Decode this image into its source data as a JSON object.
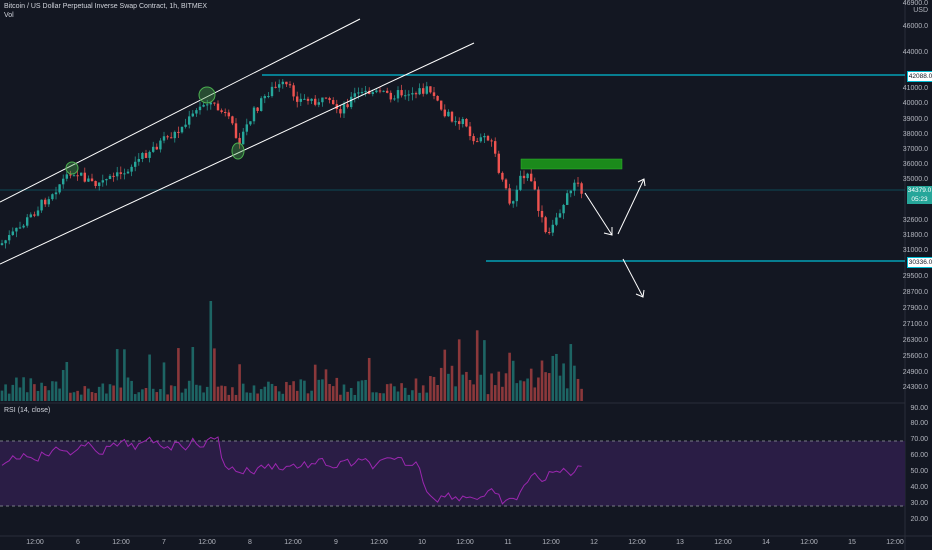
{
  "header": {
    "title": "Bitcoin / US Dollar Perpetual Inverse Swap Contract, 1h, BITMEX",
    "vol_label": "Vol",
    "currency": "USD",
    "top_price": "46900.0"
  },
  "rsi": {
    "label": "RSI (14, close)",
    "ticks": [
      "90.00",
      "80.00",
      "70.00",
      "60.00",
      "50.00",
      "40.00",
      "30.00",
      "20.00"
    ]
  },
  "price_axis": {
    "ticks": [
      "46000.0",
      "44000.0",
      "41000.0",
      "40000.0",
      "39000.0",
      "38000.0",
      "37000.0",
      "36000.0",
      "35000.0",
      "32600.0",
      "31800.0",
      "31000.0",
      "29500.0",
      "28700.0",
      "27900.0",
      "27100.0",
      "26300.0",
      "25600.0",
      "24900.0",
      "24300.0"
    ]
  },
  "price_tags": {
    "resistance": "42088.0",
    "current": "34379.0",
    "countdown": "05:23",
    "support": "30336.0"
  },
  "time_axis": [
    "12:00",
    "6",
    "12:00",
    "7",
    "12:00",
    "8",
    "12:00",
    "9",
    "12:00",
    "10",
    "12:00",
    "11",
    "12:00",
    "12",
    "12:00",
    "13",
    "12:00",
    "14",
    "12:00",
    "15",
    "12:00"
  ],
  "colors": {
    "background": "#131722",
    "up": "#26a69a",
    "down": "#ef5350",
    "level_line": "#00bcd4",
    "rsi_line": "#9c27b0",
    "rsi_band": "#2a1d45",
    "supply_zone": "#1b8a1b",
    "channel": "#ffffff"
  }
}
